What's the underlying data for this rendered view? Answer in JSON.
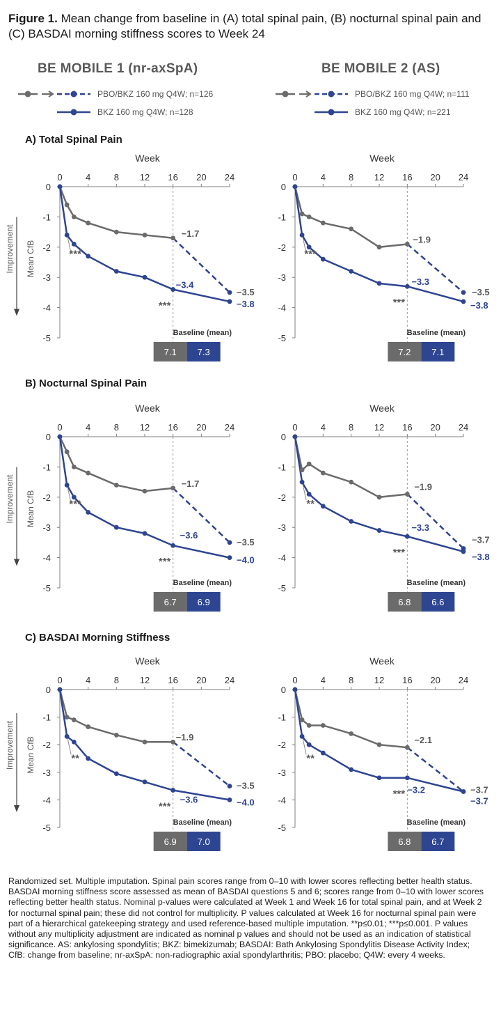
{
  "figure": {
    "label": "Figure 1.",
    "caption": "Mean change from baseline in (A) total spinal pain, (B) nocturnal spinal pain and (C) BASDAI morning stiffness scores to Week 24"
  },
  "studies": [
    {
      "title": "BE MOBILE 1 (nr-axSpA)",
      "legend": {
        "pbo_label": "PBO/BKZ 160 mg Q4W; n=126",
        "bkz_label": "BKZ 160 mg Q4W; n=128"
      }
    },
    {
      "title": "BE MOBILE 2 (AS)",
      "legend": {
        "pbo_label": "PBO/BKZ 160 mg Q4W; n=111",
        "bkz_label": "BKZ 160 mg Q4W; n=221"
      }
    }
  ],
  "panels": [
    {
      "title": "A) Total Spinal Pain"
    },
    {
      "title": "B) Nocturnal Spinal Pain"
    },
    {
      "title": "C) BASDAI Morning Stiffness"
    }
  ],
  "colors": {
    "pbo": "#6b6b6b",
    "bkz": "#2e4592",
    "ref_line": "#9a9a9a",
    "text_grey": "#595959"
  },
  "axis_texts": {
    "xlabel": "Week",
    "ylabel": "Mean CfB",
    "improvement": "Improvement",
    "baseline_label": "Baseline (mean)",
    "xticks": [
      "0",
      "4",
      "8",
      "12",
      "16",
      "20",
      "24"
    ],
    "yticks": [
      "0",
      "-1",
      "-2",
      "-3",
      "-4",
      "-5"
    ]
  },
  "chart_data": [
    {
      "type": "line",
      "study": "BE MOBILE 1 (nr-axSpA)",
      "panel": "A) Total Spinal Pain",
      "xlabel": "Week",
      "ylabel": "Mean CfB",
      "xlim": [
        0,
        24
      ],
      "ylim": [
        -5,
        0
      ],
      "series": [
        {
          "name": "PBO/BKZ 160 mg Q4W; n=126",
          "x": [
            0,
            1,
            2,
            4,
            8,
            12,
            16
          ],
          "y": [
            0,
            -0.6,
            -1.0,
            -1.2,
            -1.5,
            -1.6,
            -1.7
          ],
          "extension": {
            "x": [
              16,
              24
            ],
            "y": [
              -1.7,
              -3.5
            ],
            "style": "dashed"
          }
        },
        {
          "name": "BKZ 160 mg Q4W; n=128",
          "x": [
            0,
            1,
            2,
            4,
            8,
            12,
            16,
            24
          ],
          "y": [
            0,
            -1.6,
            -1.9,
            -2.3,
            -2.8,
            -3.0,
            -3.4,
            -3.8
          ]
        }
      ],
      "data_labels": [
        "−1.7",
        "−3.4",
        "−3.5",
        "−3.8"
      ],
      "significance": [
        "***",
        "***"
      ],
      "baseline_mean": {
        "pbo": "7.1",
        "bkz": "7.3"
      }
    },
    {
      "type": "line",
      "study": "BE MOBILE 2 (AS)",
      "panel": "A) Total Spinal Pain",
      "xlabel": "Week",
      "ylabel": "",
      "xlim": [
        0,
        24
      ],
      "ylim": [
        -5,
        0
      ],
      "series": [
        {
          "name": "PBO/BKZ 160 mg Q4W; n=111",
          "x": [
            0,
            1,
            2,
            4,
            8,
            12,
            16
          ],
          "y": [
            0,
            -0.9,
            -1.0,
            -1.2,
            -1.4,
            -2.0,
            -1.9
          ],
          "extension": {
            "x": [
              16,
              24
            ],
            "y": [
              -1.9,
              -3.5
            ],
            "style": "dashed"
          }
        },
        {
          "name": "BKZ 160 mg Q4W; n=221",
          "x": [
            0,
            1,
            2,
            4,
            8,
            12,
            16,
            24
          ],
          "y": [
            0,
            -1.6,
            -2.0,
            -2.4,
            -2.8,
            -3.2,
            -3.3,
            -3.8
          ]
        }
      ],
      "data_labels": [
        "−1.9",
        "−3.3",
        "−3.5",
        "−3.8"
      ],
      "significance": [
        "***",
        "***"
      ],
      "baseline_mean": {
        "pbo": "7.2",
        "bkz": "7.1"
      }
    },
    {
      "type": "line",
      "study": "BE MOBILE 1 (nr-axSpA)",
      "panel": "B) Nocturnal Spinal Pain",
      "xlabel": "Week",
      "ylabel": "Mean CfB",
      "xlim": [
        0,
        24
      ],
      "ylim": [
        -5,
        0
      ],
      "series": [
        {
          "name": "PBO/BKZ 160 mg Q4W; n=126",
          "x": [
            0,
            1,
            2,
            4,
            8,
            12,
            16
          ],
          "y": [
            0,
            -0.5,
            -1.0,
            -1.2,
            -1.6,
            -1.8,
            -1.7
          ],
          "extension": {
            "x": [
              16,
              24
            ],
            "y": [
              -1.7,
              -3.5
            ],
            "style": "dashed"
          }
        },
        {
          "name": "BKZ 160 mg Q4W; n=128",
          "x": [
            0,
            1,
            2,
            4,
            8,
            12,
            16,
            24
          ],
          "y": [
            0,
            -1.6,
            -2.0,
            -2.5,
            -3.0,
            -3.2,
            -3.6,
            -4.0
          ]
        }
      ],
      "data_labels": [
        "−1.7",
        "−3.6",
        "−3.5",
        "−4.0"
      ],
      "significance": [
        "***",
        "***"
      ],
      "baseline_mean": {
        "pbo": "6.7",
        "bkz": "6.9"
      }
    },
    {
      "type": "line",
      "study": "BE MOBILE 2 (AS)",
      "panel": "B) Nocturnal Spinal Pain",
      "xlabel": "Week",
      "ylabel": "",
      "xlim": [
        0,
        24
      ],
      "ylim": [
        -5,
        0
      ],
      "series": [
        {
          "name": "PBO/BKZ 160 mg Q4W; n=111",
          "x": [
            0,
            1,
            2,
            4,
            8,
            12,
            16
          ],
          "y": [
            0,
            -1.1,
            -0.9,
            -1.2,
            -1.5,
            -2.0,
            -1.9
          ],
          "extension": {
            "x": [
              16,
              24
            ],
            "y": [
              -1.9,
              -3.7
            ],
            "style": "dashed"
          }
        },
        {
          "name": "BKZ 160 mg Q4W; n=221",
          "x": [
            0,
            1,
            2,
            4,
            8,
            12,
            16,
            24
          ],
          "y": [
            0,
            -1.5,
            -1.9,
            -2.3,
            -2.8,
            -3.1,
            -3.3,
            -3.8
          ]
        }
      ],
      "data_labels": [
        "−1.9",
        "−3.3",
        "−3.7",
        "−3.8"
      ],
      "significance": [
        "**",
        "***"
      ],
      "baseline_mean": {
        "pbo": "6.8",
        "bkz": "6.6"
      }
    },
    {
      "type": "line",
      "study": "BE MOBILE 1 (nr-axSpA)",
      "panel": "C) BASDAI Morning Stiffness",
      "xlabel": "Week",
      "ylabel": "Mean CfB",
      "xlim": [
        0,
        24
      ],
      "ylim": [
        -5,
        0
      ],
      "series": [
        {
          "name": "PBO/BKZ 160 mg Q4W; n=126",
          "x": [
            0,
            1,
            2,
            4,
            8,
            12,
            16
          ],
          "y": [
            0,
            -1.0,
            -1.1,
            -1.35,
            -1.65,
            -1.9,
            -1.9
          ],
          "extension": {
            "x": [
              16,
              24
            ],
            "y": [
              -1.9,
              -3.5
            ],
            "style": "dashed"
          }
        },
        {
          "name": "BKZ 160 mg Q4W; n=128",
          "x": [
            0,
            1,
            2,
            4,
            8,
            12,
            16,
            24
          ],
          "y": [
            0,
            -1.7,
            -1.9,
            -2.5,
            -3.05,
            -3.35,
            -3.65,
            -4.0
          ]
        }
      ],
      "data_labels": [
        "−1.9",
        "−3.6",
        "−3.5",
        "−4.0"
      ],
      "significance": [
        "**",
        "***"
      ],
      "baseline_mean": {
        "pbo": "6.9",
        "bkz": "7.0"
      }
    },
    {
      "type": "line",
      "study": "BE MOBILE 2 (AS)",
      "panel": "C) BASDAI Morning Stiffness",
      "xlabel": "Week",
      "ylabel": "",
      "xlim": [
        0,
        24
      ],
      "ylim": [
        -5,
        0
      ],
      "series": [
        {
          "name": "PBO/BKZ 160 mg Q4W; n=111",
          "x": [
            0,
            1,
            2,
            4,
            8,
            12,
            16
          ],
          "y": [
            0,
            -1.1,
            -1.3,
            -1.3,
            -1.6,
            -2.0,
            -2.1
          ],
          "extension": {
            "x": [
              16,
              24
            ],
            "y": [
              -2.1,
              -3.7
            ],
            "style": "dashed"
          }
        },
        {
          "name": "BKZ 160 mg Q4W; n=221",
          "x": [
            0,
            1,
            2,
            4,
            8,
            12,
            16,
            24
          ],
          "y": [
            0,
            -1.7,
            -2.0,
            -2.3,
            -2.9,
            -3.2,
            -3.2,
            -3.7
          ]
        }
      ],
      "data_labels": [
        "−2.1",
        "−3.2",
        "−3.7",
        "−3.7"
      ],
      "significance": [
        "**",
        "***"
      ],
      "baseline_mean": {
        "pbo": "6.8",
        "bkz": "6.7"
      }
    }
  ],
  "footnote": "Randomized set. Multiple imputation. Spinal pain scores range from 0–10 with lower scores reflecting better health status. BASDAI morning stiffness score assessed as mean of BASDAI questions 5 and 6; scores range from 0–10 with lower scores reflecting better health status. Nominal p-values were calculated at Week 1 and Week 16 for total spinal pain, and at Week 2 for nocturnal spinal pain; these did not control for multiplicity. P values calculated at Week 16 for nocturnal spinal pain were part of a hierarchical gatekeeping strategy and used reference-based multiple imputation. **p≤0.01; ***p≤0.001. P values without any multiplicity adjustment are indicated as nominal p values and should not be used as an indication of statistical significance. AS: ankylosing spondylitis; BKZ: bimekizumab; BASDAI: Bath Ankylosing Spondylitis Disease Activity Index; CfB: change from baseline; nr-axSpA: non-radiographic axial spondylarthritis; PBO: placebo; Q4W: every 4 weeks."
}
